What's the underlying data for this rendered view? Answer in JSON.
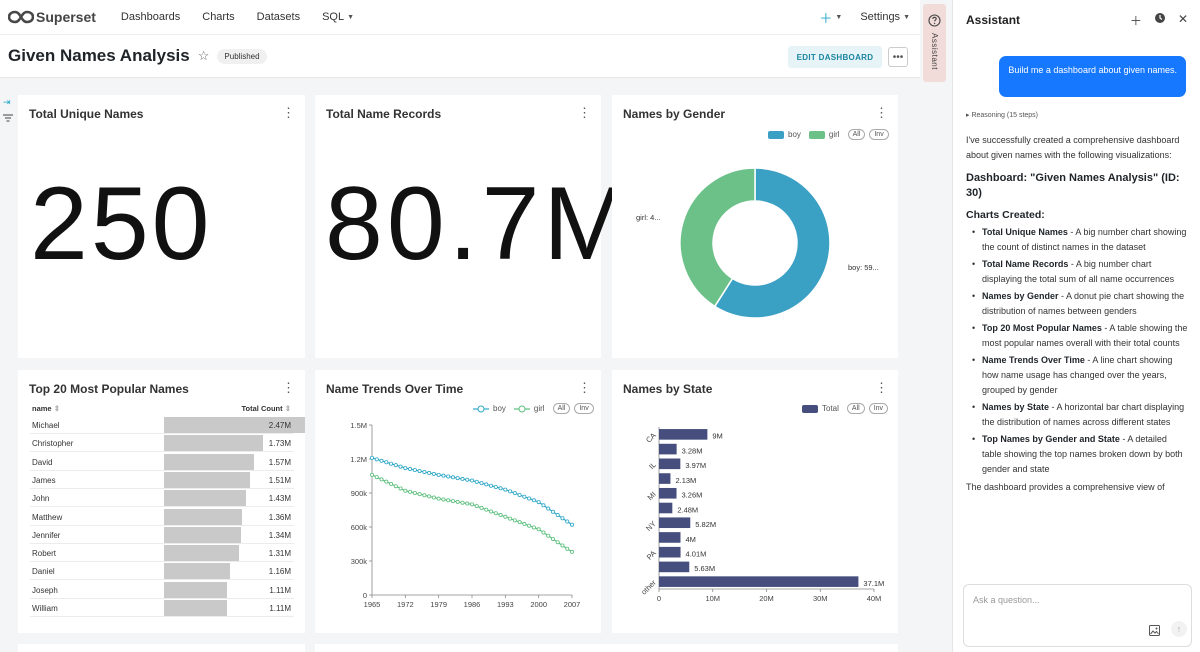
{
  "nav": {
    "logo_text": "Superset",
    "items": [
      "Dashboards",
      "Charts",
      "Datasets",
      "SQL"
    ],
    "settings_label": "Settings"
  },
  "side_tab": {
    "label": "Assistant"
  },
  "header": {
    "title": "Given Names Analysis",
    "status": "Published",
    "edit_label": "EDIT DASHBOARD"
  },
  "cards": {
    "total_unique": {
      "title": "Total Unique Names",
      "value": "250"
    },
    "total_records": {
      "title": "Total Name Records",
      "value": "80.7M"
    },
    "gender": {
      "title": "Names by Gender",
      "legend": [
        "boy",
        "girl"
      ],
      "all_label": "All",
      "inv_label": "Inv",
      "girl_label": "girl: 4...",
      "boy_label": "boy: 59..."
    },
    "top20": {
      "title": "Top 20 Most Popular Names",
      "col_name": "name",
      "col_total": "Total Count"
    },
    "trends": {
      "title": "Name Trends Over Time",
      "legend": [
        "boy",
        "girl"
      ],
      "all_label": "All",
      "inv_label": "Inv"
    },
    "states": {
      "title": "Names by State",
      "legend": [
        "Total"
      ],
      "all_label": "All",
      "inv_label": "Inv"
    }
  },
  "table_rows": [
    {
      "name": "Michael",
      "value": "2.47M",
      "frac": 1.0
    },
    {
      "name": "Christopher",
      "value": "1.73M",
      "frac": 0.7
    },
    {
      "name": "David",
      "value": "1.57M",
      "frac": 0.636
    },
    {
      "name": "James",
      "value": "1.51M",
      "frac": 0.611
    },
    {
      "name": "John",
      "value": "1.43M",
      "frac": 0.579
    },
    {
      "name": "Matthew",
      "value": "1.36M",
      "frac": 0.551
    },
    {
      "name": "Jennifer",
      "value": "1.34M",
      "frac": 0.543
    },
    {
      "name": "Robert",
      "value": "1.31M",
      "frac": 0.53
    },
    {
      "name": "Daniel",
      "value": "1.16M",
      "frac": 0.47
    },
    {
      "name": "Joseph",
      "value": "1.11M",
      "frac": 0.449
    },
    {
      "name": "William",
      "value": "1.11M",
      "frac": 0.449
    }
  ],
  "chart_data": [
    {
      "type": "pie",
      "title": "Names by Gender",
      "categories": [
        "boy",
        "girl"
      ],
      "values": [
        59,
        41
      ],
      "colors": [
        "#3aa0c4",
        "#6cc189"
      ]
    },
    {
      "type": "line",
      "title": "Name Trends Over Time",
      "x": [
        1965,
        1972,
        1979,
        1986,
        1993,
        2000,
        2007
      ],
      "xticks": [
        "1965",
        "1972",
        "1979",
        "1986",
        "1993",
        "2000",
        "2007"
      ],
      "yticks": [
        "0",
        "300k",
        "600k",
        "900k",
        "1.2M",
        "1.5M"
      ],
      "ylim": [
        0,
        1500000
      ],
      "series": [
        {
          "name": "boy",
          "color": "#2fa7c8",
          "values": [
            1210000,
            1120000,
            1060000,
            1010000,
            930000,
            820000,
            620000
          ]
        },
        {
          "name": "girl",
          "color": "#5cbf7d",
          "values": [
            1060000,
            920000,
            850000,
            800000,
            690000,
            580000,
            380000
          ]
        }
      ]
    },
    {
      "type": "bar",
      "orientation": "horizontal",
      "title": "Names by State",
      "categories": [
        "CA",
        "",
        "IL",
        "",
        "MI",
        "",
        "NY",
        "",
        "PA",
        "",
        "other"
      ],
      "values": [
        9000000,
        3280000,
        3970000,
        2130000,
        3260000,
        2480000,
        5820000,
        4000000,
        4010000,
        5630000,
        37100000
      ],
      "labels": [
        "9M",
        "3.28M",
        "3.97M",
        "2.13M",
        "3.26M",
        "2.48M",
        "5.82M",
        "4M",
        "4.01M",
        "5.63M",
        "37.1M"
      ],
      "xticks": [
        "0",
        "10M",
        "20M",
        "30M",
        "40M"
      ],
      "xlim": [
        0,
        40000000
      ],
      "color": "#454e7c"
    }
  ],
  "assistant": {
    "title": "Assistant",
    "user_message": "Build me a dashboard about given names.",
    "reasoning": "Reasoning (15 steps)",
    "intro": "I've successfully created a comprehensive dashboard about given names with the following visualizations:",
    "dashboard_heading": "Dashboard: \"Given Names Analysis\" (ID: 30)",
    "charts_heading": "Charts Created:",
    "items": [
      {
        "bold": "Total Unique Names",
        "text": " - A big number chart showing the count of distinct names in the dataset"
      },
      {
        "bold": "Total Name Records",
        "text": " - A big number chart displaying the total sum of all name occurrences"
      },
      {
        "bold": "Names by Gender",
        "text": " - A donut pie chart showing the distribution of names between genders"
      },
      {
        "bold": "Top 20 Most Popular Names",
        "text": " - A table showing the most popular names overall with their total counts"
      },
      {
        "bold": "Name Trends Over Time",
        "text": " - A line chart showing how name usage has changed over the years, grouped by gender"
      },
      {
        "bold": "Names by State",
        "text": " - A horizontal bar chart displaying the distribution of names across different states"
      },
      {
        "bold": "Top Names by Gender and State",
        "text": " - A detailed table showing the top names broken down by both gender and state"
      }
    ],
    "closing": "The dashboard provides a comprehensive view of",
    "input_placeholder": "Ask a question..."
  }
}
